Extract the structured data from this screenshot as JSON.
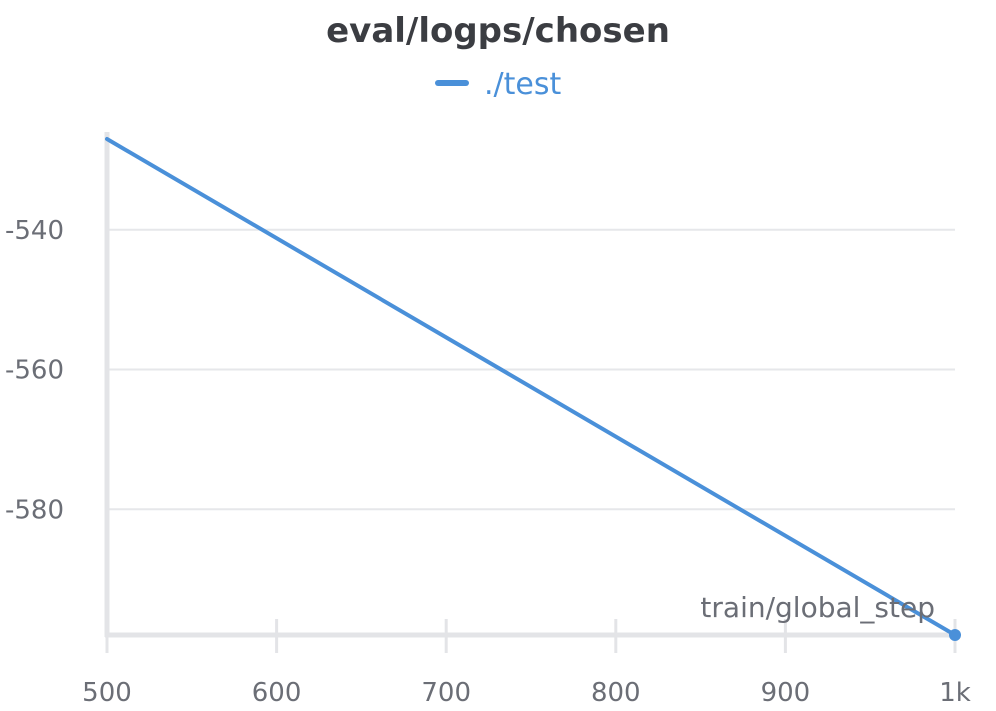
{
  "chart_data": {
    "type": "line",
    "title": "eval/logps/chosen",
    "xlabel": "train/global_step",
    "ylabel": "",
    "legend": {
      "entries": [
        "./test"
      ],
      "placement": "top-center"
    },
    "x_ticks": [
      {
        "value": 500,
        "label": "500"
      },
      {
        "value": 600,
        "label": "600"
      },
      {
        "value": 700,
        "label": "700"
      },
      {
        "value": 800,
        "label": "800"
      },
      {
        "value": 900,
        "label": "900"
      },
      {
        "value": 1000,
        "label": "1k"
      }
    ],
    "y_ticks": [
      {
        "value": -540,
        "label": "-540"
      },
      {
        "value": -560,
        "label": "-560"
      },
      {
        "value": -580,
        "label": "-580"
      }
    ],
    "xlim": [
      500,
      1000
    ],
    "ylim": [
      -598,
      -526
    ],
    "grid": {
      "horizontal": true,
      "vertical": false
    },
    "series": [
      {
        "name": "./test",
        "color": "#4a90d9",
        "x": [
          500,
          1000
        ],
        "y": [
          -527,
          -598
        ]
      }
    ]
  }
}
